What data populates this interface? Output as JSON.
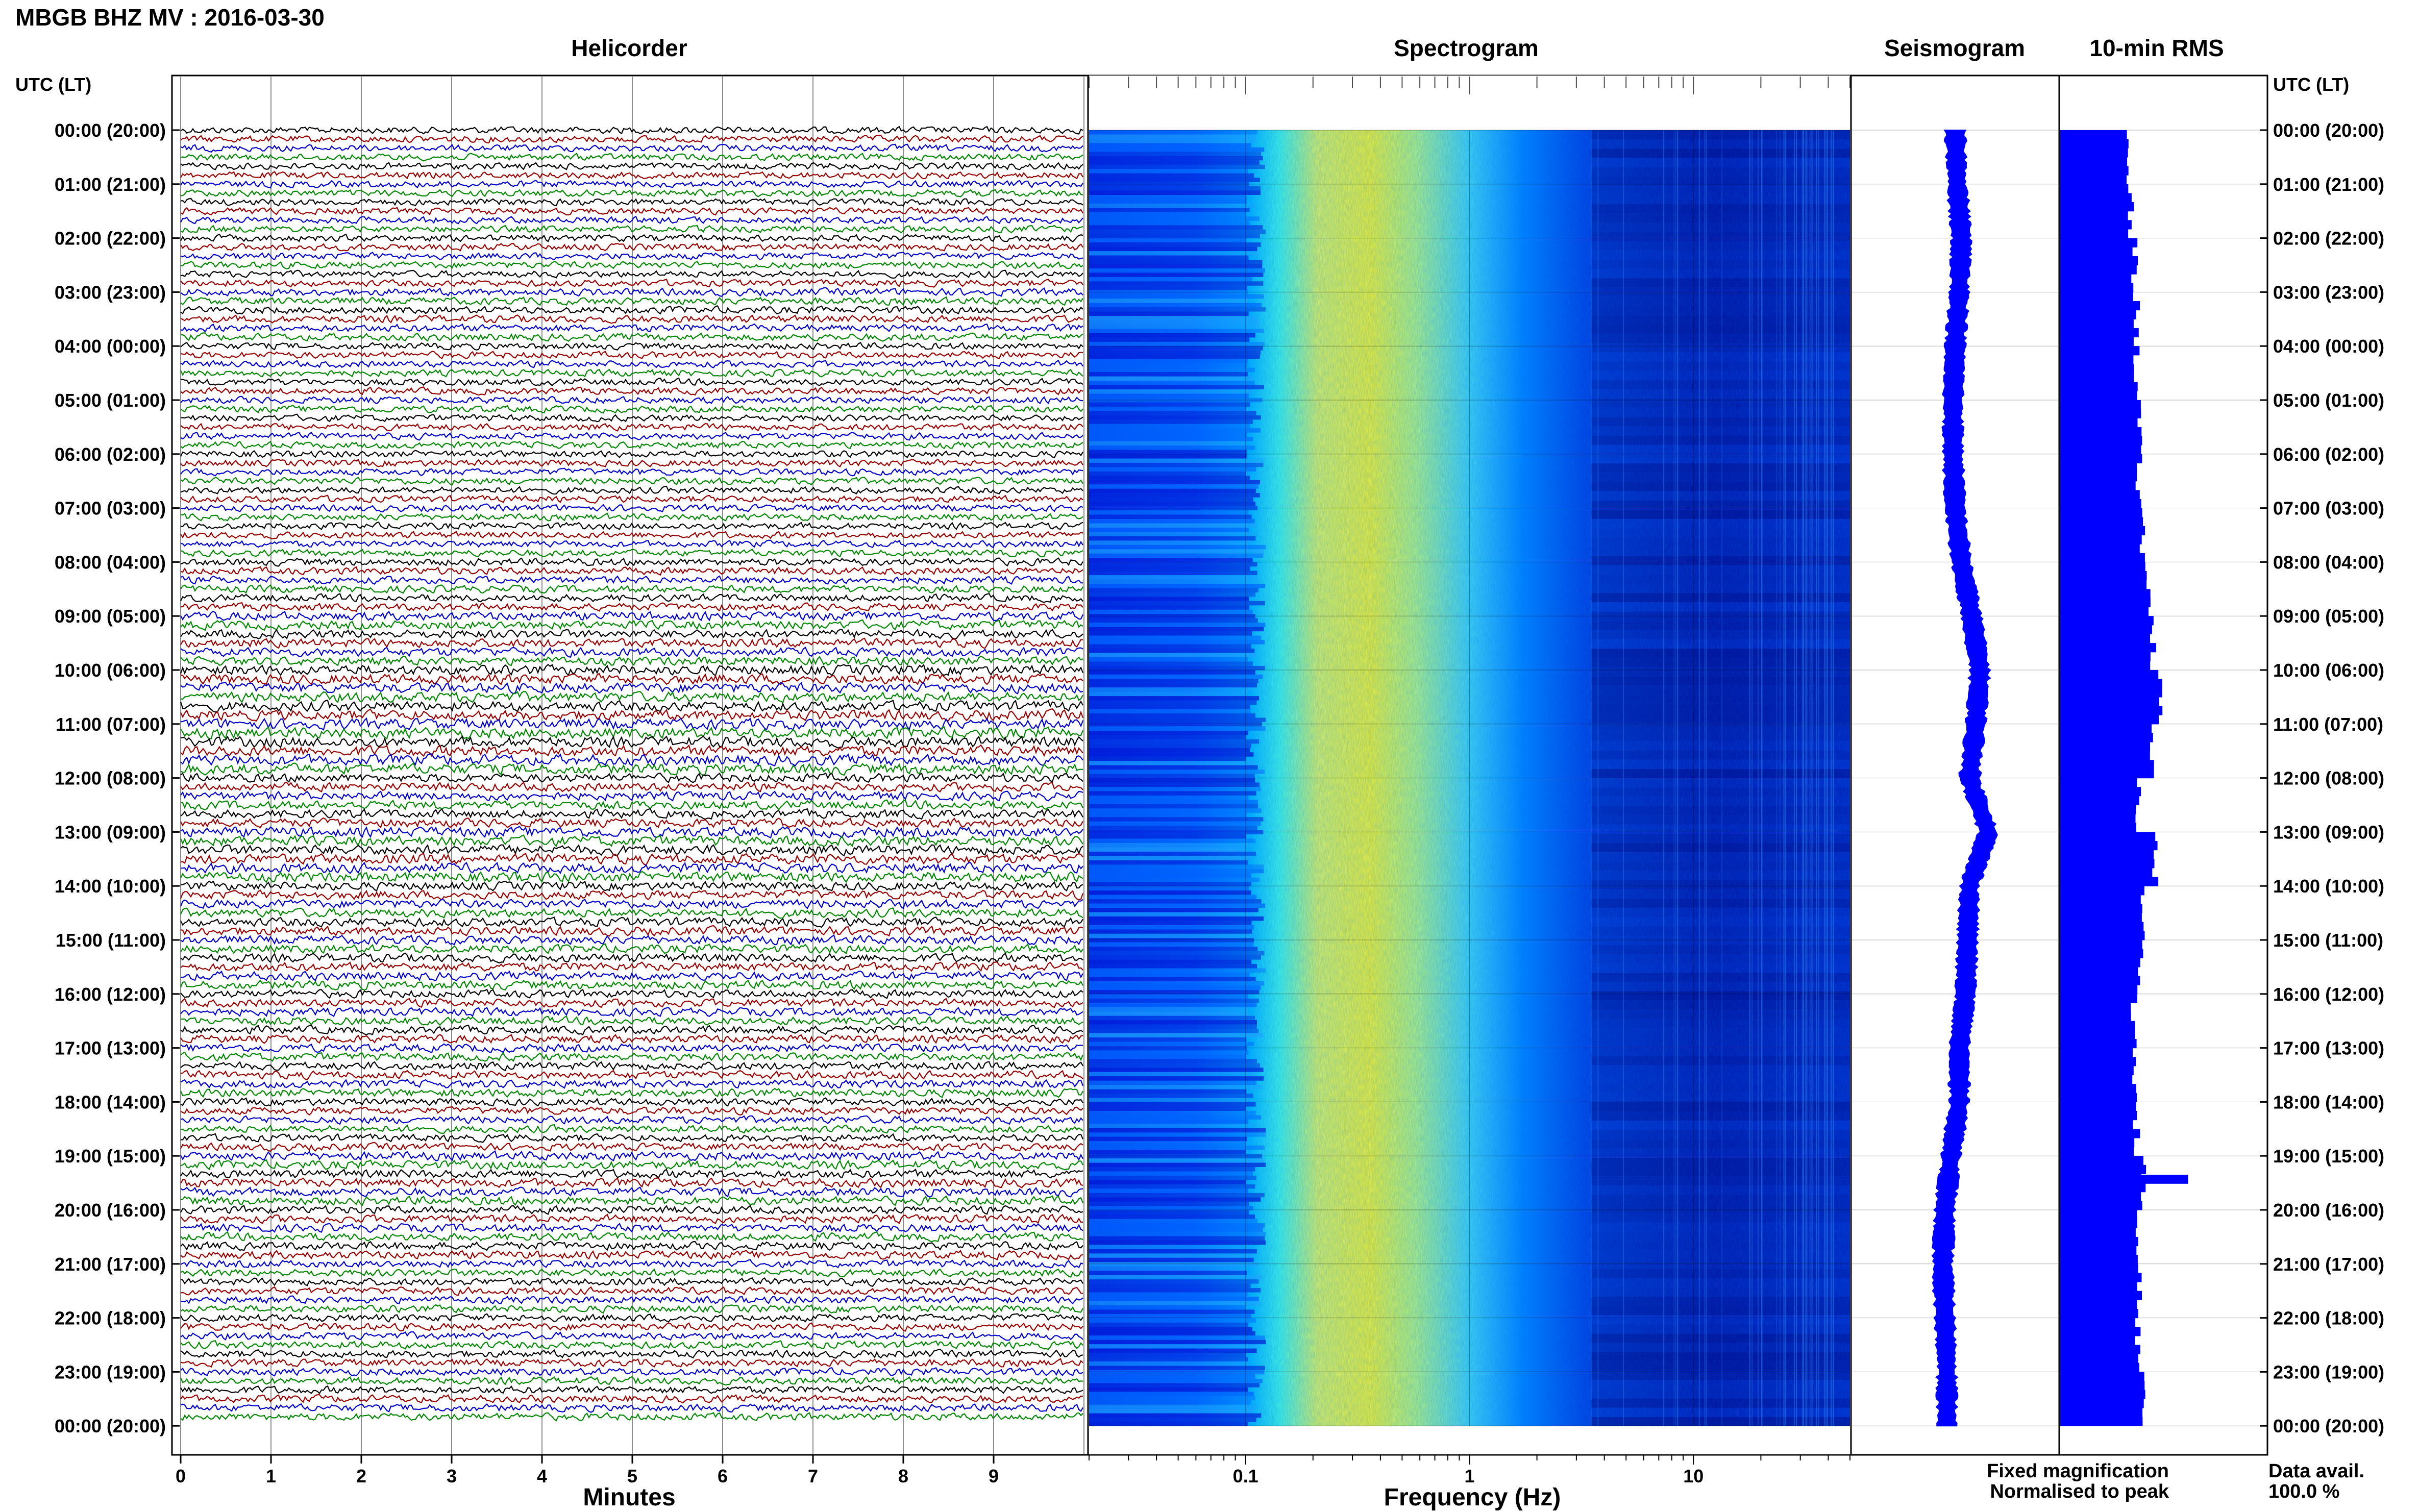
{
  "page_title": "MBGB BHZ MV : 2016-03-30",
  "utc_header_left": "UTC (LT)",
  "utc_header_right": "UTC (LT)",
  "time_labels": [
    "00:00 (20:00)",
    "01:00 (21:00)",
    "02:00 (22:00)",
    "03:00 (23:00)",
    "04:00 (00:00)",
    "05:00 (01:00)",
    "06:00 (02:00)",
    "07:00 (03:00)",
    "08:00 (04:00)",
    "09:00 (05:00)",
    "10:00 (06:00)",
    "11:00 (07:00)",
    "12:00 (08:00)",
    "13:00 (09:00)",
    "14:00 (10:00)",
    "15:00 (11:00)",
    "16:00 (12:00)",
    "17:00 (13:00)",
    "18:00 (14:00)",
    "19:00 (15:00)",
    "20:00 (16:00)",
    "21:00 (17:00)",
    "22:00 (18:00)",
    "23:00 (19:00)",
    "00:00 (20:00)"
  ],
  "legend": {
    "fixed": "Fixed magnification",
    "normalised": "Normalised to peak",
    "fixed_color": "#0000ff",
    "normalised_color": "#ff0000"
  },
  "data_avail": {
    "label": "Data avail.",
    "value": "100.0 %"
  },
  "chart_data": [
    {
      "type": "line",
      "title": "Helicorder",
      "xlabel": "Minutes",
      "ylabel": "",
      "xlim": [
        0,
        10
      ],
      "x_ticks": [
        "0",
        "1",
        "2",
        "3",
        "4",
        "5",
        "6",
        "7",
        "8",
        "9"
      ],
      "rows_per_hour": 6,
      "trace_colors": [
        "#000000",
        "#990000",
        "#0000cc",
        "#008800"
      ],
      "trace_amplitude_by_hour": [
        1.0,
        1.0,
        1.0,
        1.1,
        1.0,
        1.0,
        1.0,
        1.0,
        1.1,
        1.3,
        1.5,
        1.6,
        1.3,
        1.5,
        1.3,
        1.3,
        1.2,
        1.2,
        1.1,
        1.3,
        1.2,
        1.1,
        1.1,
        1.1
      ]
    },
    {
      "type": "heatmap",
      "title": "Spectrogram",
      "xlabel": "Frequency (Hz)",
      "ylabel": "",
      "xscale": "log",
      "xlim": [
        0.02,
        50
      ],
      "x_ticks": [
        "0.1",
        "1",
        "10"
      ],
      "colormap": [
        "#00007f",
        "#0000ff",
        "#0080ff",
        "#00e5ff",
        "#80ff80",
        "#ffff00"
      ]
    },
    {
      "type": "line",
      "title": "Seismogram",
      "xlabel": "",
      "ylabel": "",
      "color": "#0000ff",
      "level_by_hour": [
        0.5,
        0.51,
        0.53,
        0.52,
        0.5,
        0.49,
        0.49,
        0.5,
        0.53,
        0.58,
        0.62,
        0.6,
        0.57,
        0.66,
        0.57,
        0.56,
        0.55,
        0.52,
        0.52,
        0.48,
        0.45,
        0.44,
        0.45,
        0.46
      ]
    },
    {
      "type": "bar",
      "title": "10-min RMS",
      "xlabel": "",
      "ylabel": "",
      "color": "#0000ff",
      "orientation": "horizontal",
      "rms_by_hour": [
        0.32,
        0.34,
        0.36,
        0.37,
        0.37,
        0.38,
        0.38,
        0.4,
        0.43,
        0.45,
        0.48,
        0.44,
        0.38,
        0.46,
        0.4,
        0.39,
        0.36,
        0.36,
        0.37,
        0.4,
        0.37,
        0.38,
        0.38,
        0.4
      ],
      "spike": {
        "hour": 19.35,
        "value": 0.62
      }
    }
  ]
}
